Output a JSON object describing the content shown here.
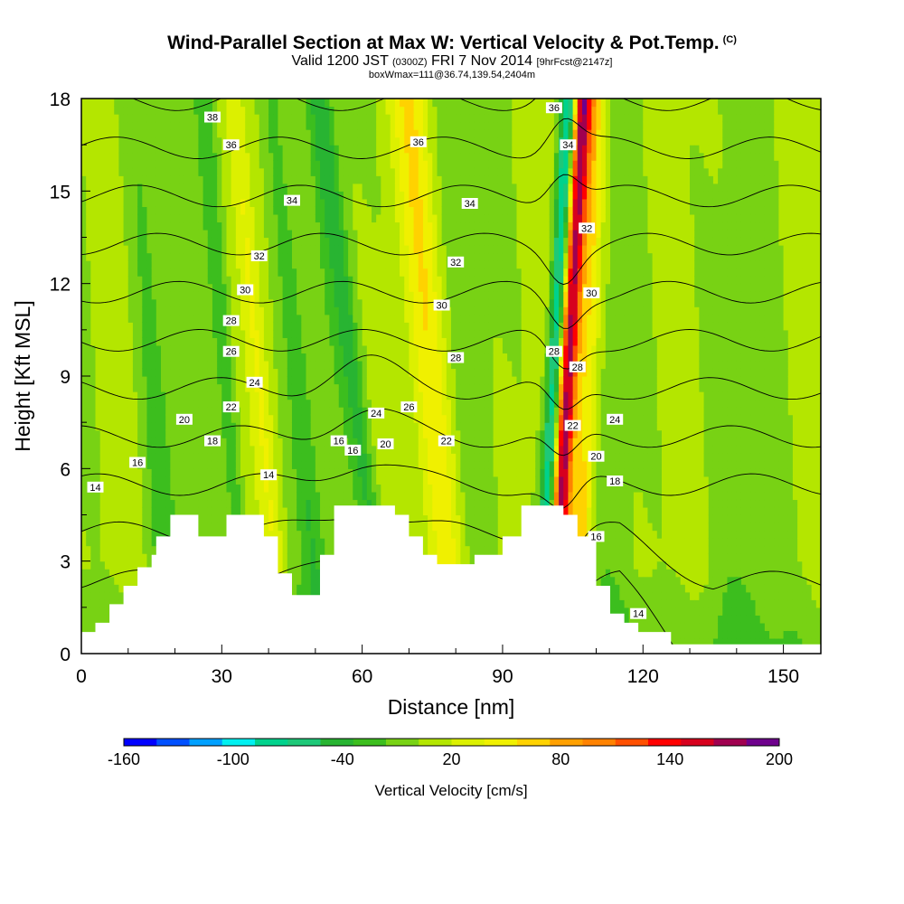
{
  "title": {
    "main": "Wind-Parallel Section at Max W: Vertical Velocity & Pot.Temp.",
    "main_tag": "(C)",
    "valid_prefix": "Valid 1200 JST",
    "valid_utc": "(0300Z)",
    "valid_date": "FRI 7 Nov 2014",
    "valid_fcst": "[9hrFcst@2147z]",
    "box_wmax": "boxWmax=111@36.74,139.54,2404m"
  },
  "chart_data": {
    "type": "heatmap",
    "xlabel": "Distance [nm]",
    "ylabel": "Height [Kft MSL]",
    "xlim": [
      0,
      158
    ],
    "ylim": [
      0,
      18
    ],
    "x_ticks": [
      0,
      30,
      60,
      90,
      120,
      150
    ],
    "y_ticks": [
      0,
      3,
      6,
      9,
      12,
      15,
      18
    ],
    "colorbar": {
      "title": "Vertical Velocity [cm/s]",
      "range": [
        -160,
        200
      ],
      "step": 20,
      "labels": [
        "-160",
        "-100",
        "-40",
        "20",
        "80",
        "140",
        "200"
      ],
      "colors": [
        "#0000ff",
        "#0050ff",
        "#00a0ff",
        "#00f0f0",
        "#00d28c",
        "#1ec878",
        "#28b432",
        "#3cbe1e",
        "#78d214",
        "#b4e600",
        "#dcf000",
        "#f0f000",
        "#ffd200",
        "#ffa000",
        "#ff8200",
        "#ff5000",
        "#ff0000",
        "#d7001e",
        "#a00050",
        "#6e008c"
      ]
    },
    "terrain_kft": [
      [
        0,
        0.7
      ],
      [
        3,
        0.7
      ],
      [
        3,
        1.0
      ],
      [
        6,
        1.0
      ],
      [
        6,
        1.6
      ],
      [
        9,
        1.6
      ],
      [
        9,
        2.2
      ],
      [
        12,
        2.2
      ],
      [
        12,
        2.8
      ],
      [
        15,
        2.8
      ],
      [
        15,
        3.2
      ],
      [
        16,
        3.2
      ],
      [
        16,
        3.8
      ],
      [
        19,
        3.8
      ],
      [
        19,
        4.5
      ],
      [
        25,
        4.5
      ],
      [
        25,
        3.8
      ],
      [
        31,
        3.8
      ],
      [
        31,
        4.5
      ],
      [
        39,
        4.5
      ],
      [
        39,
        3.8
      ],
      [
        42,
        3.8
      ],
      [
        42,
        2.6
      ],
      [
        45,
        2.6
      ],
      [
        45,
        1.9
      ],
      [
        51,
        1.9
      ],
      [
        51,
        3.2
      ],
      [
        54,
        3.2
      ],
      [
        54,
        4.8
      ],
      [
        67,
        4.8
      ],
      [
        67,
        4.5
      ],
      [
        70,
        4.5
      ],
      [
        70,
        3.8
      ],
      [
        73,
        3.8
      ],
      [
        73,
        3.2
      ],
      [
        76,
        3.2
      ],
      [
        76,
        2.9
      ],
      [
        84,
        2.9
      ],
      [
        84,
        3.2
      ],
      [
        90,
        3.2
      ],
      [
        90,
        3.8
      ],
      [
        94,
        3.8
      ],
      [
        94,
        4.8
      ],
      [
        103,
        4.8
      ],
      [
        103,
        4.5
      ],
      [
        106,
        4.5
      ],
      [
        106,
        3.8
      ],
      [
        110,
        3.8
      ],
      [
        110,
        3.2
      ],
      [
        110,
        2.2
      ],
      [
        113,
        2.2
      ],
      [
        113,
        1.3
      ],
      [
        116,
        1.3
      ],
      [
        116,
        1.0
      ],
      [
        119,
        1.0
      ],
      [
        119,
        0.7
      ],
      [
        126,
        0.7
      ],
      [
        126,
        0.3
      ],
      [
        158,
        0.3
      ]
    ],
    "w_features": [
      {
        "x": 104,
        "xslope": 0.35,
        "w": 185,
        "width": 1.9
      },
      {
        "x": 101,
        "xslope": 0.35,
        "w": -105,
        "width": 1.6
      },
      {
        "x": 108,
        "xslope": 0.2,
        "w": 70,
        "width": 2.5
      },
      {
        "x": 75,
        "xslope": -0.55,
        "w": 55,
        "width": 4.0
      },
      {
        "x": 58,
        "xslope": -0.8,
        "w": -45,
        "width": 2.2
      },
      {
        "x": 38,
        "xslope": -0.6,
        "w": 35,
        "width": 2.2
      },
      {
        "x": 31,
        "xslope": -0.5,
        "w": -30,
        "width": 1.8
      },
      {
        "x": 46,
        "xslope": -0.6,
        "w": -35,
        "width": 2.4
      },
      {
        "x": 15,
        "xslope": -0.4,
        "w": -20,
        "width": 3.0
      }
    ],
    "theta_levels": [
      14,
      16,
      18,
      20,
      22,
      24,
      26,
      28,
      30,
      32,
      34,
      36,
      38
    ],
    "contour_labels": [
      {
        "text": "38",
        "x": 28,
        "y": 17.4
      },
      {
        "text": "36",
        "x": 32,
        "y": 16.5
      },
      {
        "text": "34",
        "x": 45,
        "y": 14.7
      },
      {
        "text": "32",
        "x": 38,
        "y": 12.9
      },
      {
        "text": "30",
        "x": 35,
        "y": 11.8
      },
      {
        "text": "28",
        "x": 32,
        "y": 10.8
      },
      {
        "text": "26",
        "x": 32,
        "y": 9.8
      },
      {
        "text": "24",
        "x": 37,
        "y": 8.8
      },
      {
        "text": "22",
        "x": 32,
        "y": 8.0
      },
      {
        "text": "20",
        "x": 22,
        "y": 7.6
      },
      {
        "text": "18",
        "x": 28,
        "y": 6.9
      },
      {
        "text": "16",
        "x": 12,
        "y": 6.2
      },
      {
        "text": "14",
        "x": 3,
        "y": 5.4
      },
      {
        "text": "14",
        "x": 40,
        "y": 5.8
      },
      {
        "text": "16",
        "x": 55,
        "y": 6.9
      },
      {
        "text": "16",
        "x": 58,
        "y": 6.6
      },
      {
        "text": "20",
        "x": 65,
        "y": 6.8
      },
      {
        "text": "24",
        "x": 63,
        "y": 7.8
      },
      {
        "text": "26",
        "x": 70,
        "y": 8.0
      },
      {
        "text": "22",
        "x": 78,
        "y": 6.9
      },
      {
        "text": "28",
        "x": 80,
        "y": 9.6
      },
      {
        "text": "30",
        "x": 77,
        "y": 11.3
      },
      {
        "text": "32",
        "x": 80,
        "y": 12.7
      },
      {
        "text": "34",
        "x": 83,
        "y": 14.6
      },
      {
        "text": "36",
        "x": 72,
        "y": 16.6
      },
      {
        "text": "36",
        "x": 101,
        "y": 17.7
      },
      {
        "text": "34",
        "x": 104,
        "y": 16.5
      },
      {
        "text": "32",
        "x": 108,
        "y": 13.8
      },
      {
        "text": "30",
        "x": 109,
        "y": 11.7
      },
      {
        "text": "28",
        "x": 101,
        "y": 9.8
      },
      {
        "text": "28",
        "x": 106,
        "y": 9.3
      },
      {
        "text": "22",
        "x": 105,
        "y": 7.4
      },
      {
        "text": "24",
        "x": 114,
        "y": 7.6
      },
      {
        "text": "20",
        "x": 110,
        "y": 6.4
      },
      {
        "text": "18",
        "x": 114,
        "y": 5.6
      },
      {
        "text": "16",
        "x": 110,
        "y": 3.8
      },
      {
        "text": "14",
        "x": 119,
        "y": 1.3
      }
    ]
  }
}
